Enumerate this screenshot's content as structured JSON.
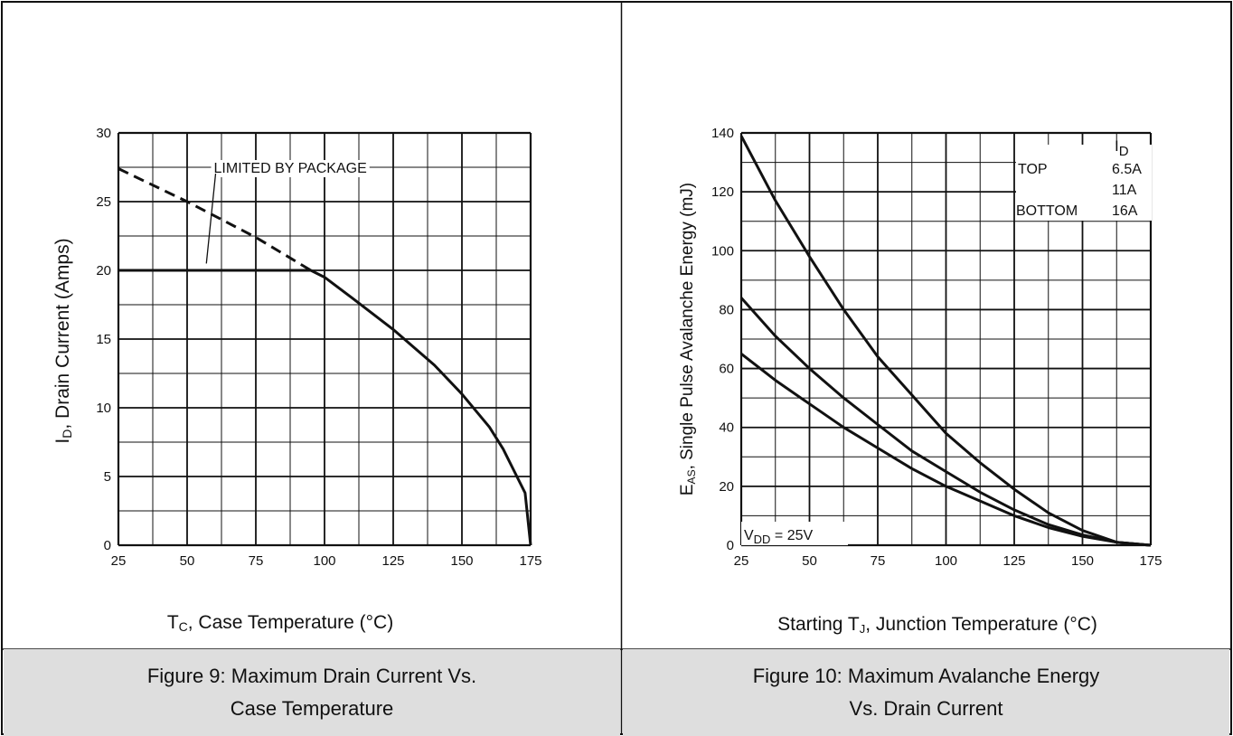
{
  "figures": [
    {
      "caption_line1": "Figure 9: Maximum Drain Current Vs.",
      "caption_line2": "Case Temperature"
    },
    {
      "caption_line1": "Figure 10: Maximum Avalanche Energy",
      "caption_line2": "Vs. Drain Current"
    }
  ],
  "chart_data": [
    {
      "type": "line",
      "xlabel_main": "T",
      "xlabel_sub": "C",
      "xlabel_rest": ", Case Temperature (°C)",
      "ylabel_main": "I",
      "ylabel_sub": "D",
      "ylabel_rest": ", Drain Current (Amps)",
      "xlim": [
        25,
        175
      ],
      "ylim": [
        0,
        30
      ],
      "x_ticks": [
        "25",
        "50",
        "75",
        "100",
        "125",
        "150",
        "175"
      ],
      "y_ticks": [
        "0",
        "5",
        "10",
        "15",
        "20",
        "25",
        "30"
      ],
      "grid": true,
      "annotations": [
        {
          "text": "LIMITED BY PACKAGE",
          "x": 63,
          "y": 27.5
        }
      ],
      "series": [
        {
          "style": "solid",
          "x": [
            25,
            95,
            100,
            110,
            125,
            140,
            150,
            160,
            165,
            170,
            173,
            175
          ],
          "y": [
            20,
            20,
            19.5,
            18.0,
            15.7,
            13.1,
            11.0,
            8.6,
            7.0,
            5.0,
            3.8,
            0
          ]
        },
        {
          "style": "dashed",
          "x": [
            25,
            50,
            75,
            95
          ],
          "y": [
            27.4,
            25.0,
            22.4,
            20.0
          ]
        }
      ]
    },
    {
      "type": "line",
      "xlabel_main": "Starting T",
      "xlabel_sub": "J",
      "xlabel_rest": ", Junction Temperature (°C)",
      "ylabel_main": "E",
      "ylabel_sub": "AS",
      "ylabel_rest": ", Single Pulse Avalanche Energy (mJ)",
      "xlim": [
        25,
        175
      ],
      "ylim": [
        0,
        140
      ],
      "x_ticks": [
        "25",
        "50",
        "75",
        "100",
        "125",
        "150",
        "175"
      ],
      "y_ticks": [
        "0",
        "20",
        "40",
        "60",
        "80",
        "100",
        "120",
        "140"
      ],
      "grid": true,
      "legend": {
        "header_main": "I",
        "header_sub": "D",
        "rows": [
          {
            "label": "TOP",
            "value": "6.5A"
          },
          {
            "label": "",
            "value": "11A"
          },
          {
            "label": "BOTTOM",
            "value": "16A"
          }
        ]
      },
      "annotation_main": "V",
      "annotation_sub": "DD",
      "annotation_rest": " = 25V",
      "series": [
        {
          "name": "6.5A",
          "x": [
            25,
            37.5,
            50,
            62.5,
            75,
            87.5,
            100,
            112.5,
            125,
            137.5,
            150,
            162.5,
            175
          ],
          "y": [
            139,
            117,
            98,
            80,
            64,
            51,
            38,
            28,
            19,
            11,
            5,
            1,
            0
          ]
        },
        {
          "name": "11A",
          "x": [
            25,
            37.5,
            50,
            62.5,
            75,
            87.5,
            100,
            112.5,
            125,
            137.5,
            150,
            162.5,
            175
          ],
          "y": [
            84,
            71,
            60,
            50,
            41,
            32,
            25,
            18,
            12,
            7,
            3.5,
            1,
            0
          ]
        },
        {
          "name": "16A",
          "x": [
            25,
            37.5,
            50,
            62.5,
            75,
            87.5,
            100,
            112.5,
            125,
            137.5,
            150,
            162.5,
            175
          ],
          "y": [
            65,
            56,
            48,
            40,
            33,
            26,
            20,
            15,
            10,
            6,
            3,
            1,
            0
          ]
        }
      ]
    }
  ]
}
